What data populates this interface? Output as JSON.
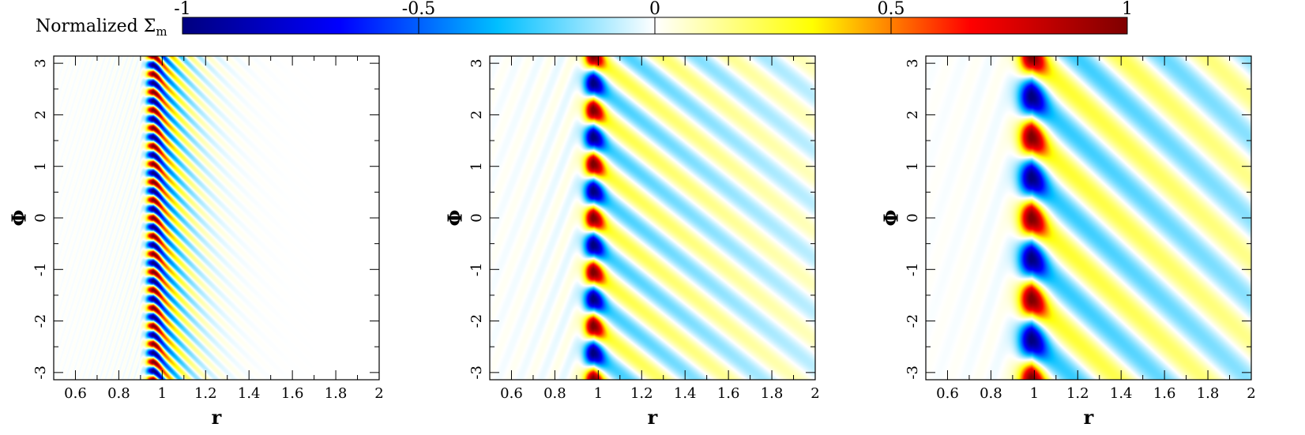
{
  "colorbar": {
    "label": "Normalized Σ",
    "label_subscript": "m",
    "range": [
      -1,
      1
    ],
    "ticks": [
      -1,
      -0.5,
      0,
      0.5,
      1
    ],
    "tick_labels": [
      "-1",
      "-0.5",
      "0",
      "0.5",
      "1"
    ],
    "colormap": [
      "#00007f",
      "#0000ff",
      "#00bfff",
      "#ffffff",
      "#ffff00",
      "#ff0000",
      "#7f0000"
    ]
  },
  "chart_data": [
    {
      "type": "heatmap",
      "title": "",
      "xlabel": "r",
      "ylabel": "Φ",
      "xlim": [
        0.5,
        2
      ],
      "ylim": [
        -3.14,
        3.14
      ],
      "x_ticks": [
        0.6,
        0.8,
        1,
        1.2,
        1.4,
        1.6,
        1.8,
        2
      ],
      "x_tick_labels": [
        "0.6",
        "0.8",
        "1",
        "1.2",
        "1.4",
        "1.6",
        "1.8",
        "2"
      ],
      "y_ticks": [
        -3,
        -2,
        -1,
        0,
        1,
        2,
        3
      ],
      "y_tick_labels": [
        "-3",
        "-2",
        "-1",
        "0",
        "1",
        "2",
        "3"
      ],
      "value_range": [
        -1,
        1
      ],
      "pattern": {
        "m": 18,
        "r0": 0.96,
        "inner_width": 0.03,
        "outer_decay": 0.1,
        "wind": 12,
        "amp_outer": 1.0,
        "amp_inner": 0.03
      }
    },
    {
      "type": "heatmap",
      "title": "",
      "xlabel": "r",
      "ylabel": "Φ",
      "xlim": [
        0.5,
        2
      ],
      "ylim": [
        -3.14,
        3.14
      ],
      "x_ticks": [
        0.6,
        0.8,
        1,
        1.2,
        1.4,
        1.6,
        1.8,
        2
      ],
      "x_tick_labels": [
        "0.6",
        "0.8",
        "1",
        "1.2",
        "1.4",
        "1.6",
        "1.8",
        "2"
      ],
      "y_ticks": [
        -3,
        -2,
        -1,
        0,
        1,
        2,
        3
      ],
      "y_tick_labels": [
        "-3",
        "-2",
        "-1",
        "0",
        "1",
        "2",
        "3"
      ],
      "value_range": [
        -1,
        1
      ],
      "pattern": {
        "m": 6,
        "r0": 0.98,
        "inner_width": 0.045,
        "outer_decay": 0.9,
        "wind": 3.2,
        "amp_outer": 0.28,
        "amp_inner": 0.05
      }
    },
    {
      "type": "heatmap",
      "title": "",
      "xlabel": "r",
      "ylabel": "Φ",
      "xlim": [
        0.5,
        2
      ],
      "ylim": [
        -3.14,
        3.14
      ],
      "x_ticks": [
        0.6,
        0.8,
        1,
        1.2,
        1.4,
        1.6,
        1.8,
        2
      ],
      "x_tick_labels": [
        "0.6",
        "0.8",
        "1",
        "1.2",
        "1.4",
        "1.6",
        "1.8",
        "2"
      ],
      "y_ticks": [
        -3,
        -2,
        -1,
        0,
        1,
        2,
        3
      ],
      "y_tick_labels": [
        "-3",
        "-2",
        "-1",
        "0",
        "1",
        "2",
        "3"
      ],
      "value_range": [
        -1,
        1
      ],
      "pattern": {
        "m": 4,
        "r0": 0.99,
        "inner_width": 0.06,
        "outer_decay": 1.5,
        "wind": 2.5,
        "amp_outer": 0.3,
        "amp_inner": 0.03
      }
    }
  ]
}
